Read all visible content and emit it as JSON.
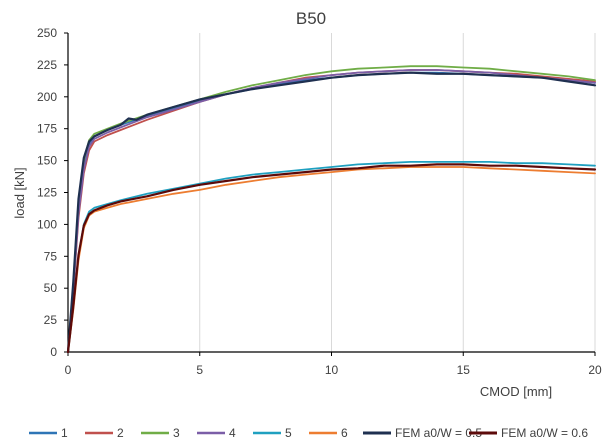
{
  "chart_data": {
    "type": "line",
    "title": "B50",
    "xlabel": "CMOD [mm]",
    "ylabel": "load [kN]",
    "xlim": [
      0,
      20
    ],
    "ylim": [
      0,
      250
    ],
    "xticks": [
      0,
      5,
      10,
      15,
      20
    ],
    "yticks": [
      0,
      25,
      50,
      75,
      100,
      125,
      150,
      175,
      200,
      225,
      250
    ],
    "grid": "vertical",
    "legend_position": "bottom",
    "series": [
      {
        "name": "1",
        "color": "#2e75b6",
        "group": "upper",
        "x": [
          0,
          0.2,
          0.4,
          0.6,
          0.8,
          1.0,
          1.5,
          2,
          3,
          4,
          5,
          6,
          7,
          8,
          9,
          10,
          11,
          12,
          13,
          14,
          15,
          16,
          17,
          18,
          19,
          20
        ],
        "y": [
          0,
          50,
          110,
          145,
          163,
          169,
          174,
          178,
          185,
          191,
          197,
          202,
          206,
          210,
          213,
          215,
          217,
          218,
          219,
          219,
          218,
          217,
          216,
          215,
          213,
          211
        ]
      },
      {
        "name": "2",
        "color": "#c0504d",
        "group": "upper",
        "x": [
          0,
          0.2,
          0.4,
          0.6,
          0.8,
          1.0,
          1.5,
          2,
          3,
          4,
          5,
          6,
          7,
          8,
          9,
          10,
          11,
          12,
          13,
          14,
          15,
          16,
          17,
          18,
          19,
          20
        ],
        "y": [
          0,
          48,
          105,
          140,
          158,
          165,
          170,
          174,
          182,
          189,
          196,
          202,
          207,
          211,
          215,
          217,
          219,
          220,
          221,
          221,
          220,
          219,
          218,
          216,
          214,
          212
        ]
      },
      {
        "name": "3",
        "color": "#70ad47",
        "group": "upper",
        "x": [
          0,
          0.2,
          0.4,
          0.6,
          0.8,
          1.0,
          1.5,
          2,
          3,
          4,
          5,
          6,
          7,
          8,
          9,
          10,
          11,
          12,
          13,
          14,
          15,
          16,
          17,
          18,
          19,
          20
        ],
        "y": [
          0,
          52,
          115,
          150,
          166,
          171,
          175,
          179,
          186,
          192,
          198,
          204,
          209,
          213,
          217,
          220,
          222,
          223,
          224,
          224,
          223,
          222,
          220,
          218,
          216,
          213
        ]
      },
      {
        "name": "4",
        "color": "#7b5ea7",
        "group": "upper",
        "x": [
          0,
          0.2,
          0.4,
          0.6,
          0.8,
          1.0,
          1.5,
          2,
          3,
          4,
          5,
          6,
          7,
          8,
          9,
          10,
          11,
          12,
          13,
          14,
          15,
          16,
          17,
          18,
          19,
          20
        ],
        "y": [
          0,
          49,
          108,
          143,
          161,
          167,
          172,
          176,
          184,
          190,
          196,
          202,
          207,
          211,
          214,
          217,
          219,
          220,
          221,
          221,
          220,
          219,
          217,
          215,
          213,
          211
        ]
      },
      {
        "name": "5",
        "color": "#1fa0c0",
        "group": "lower",
        "x": [
          0,
          0.2,
          0.4,
          0.6,
          0.8,
          1.0,
          1.5,
          2,
          3,
          4,
          5,
          6,
          7,
          8,
          9,
          10,
          11,
          12,
          13,
          14,
          15,
          16,
          17,
          18,
          19,
          20
        ],
        "y": [
          0,
          35,
          75,
          100,
          110,
          113,
          116,
          119,
          124,
          128,
          132,
          136,
          139,
          141,
          143,
          145,
          147,
          148,
          149,
          149,
          149,
          149,
          148,
          148,
          147,
          146
        ]
      },
      {
        "name": "6",
        "color": "#ed7d31",
        "group": "lower",
        "x": [
          0,
          0.2,
          0.4,
          0.6,
          0.8,
          1.0,
          1.5,
          2,
          3,
          4,
          5,
          6,
          7,
          8,
          9,
          10,
          11,
          12,
          13,
          14,
          15,
          16,
          17,
          18,
          19,
          20
        ],
        "y": [
          0,
          33,
          72,
          97,
          107,
          110,
          113,
          116,
          120,
          124,
          127,
          131,
          134,
          137,
          139,
          141,
          143,
          144,
          145,
          145,
          145,
          144,
          143,
          142,
          141,
          140
        ]
      },
      {
        "name": "FEM a0/W = 0.5",
        "color": "#1f3050",
        "group": "upper",
        "x": [
          0,
          0.2,
          0.4,
          0.6,
          0.8,
          1.0,
          1.5,
          2,
          2.3,
          2.6,
          3,
          4,
          5,
          6,
          7,
          8,
          9,
          10,
          11,
          12,
          13,
          14,
          15,
          16,
          17,
          18,
          19,
          20
        ],
        "y": [
          0,
          55,
          120,
          152,
          165,
          169,
          174,
          178,
          183,
          182,
          186,
          192,
          198,
          202,
          206,
          209,
          212,
          215,
          217,
          218,
          219,
          218,
          218,
          217,
          216,
          215,
          212,
          209
        ]
      },
      {
        "name": "FEM a0/W = 0.6",
        "color": "#5c0a0a",
        "group": "lower",
        "x": [
          0,
          0.2,
          0.4,
          0.6,
          0.8,
          1.0,
          1.5,
          2,
          3,
          4,
          5,
          6,
          7,
          8,
          9,
          10,
          11,
          12,
          13,
          14,
          15,
          16,
          17,
          18,
          19,
          20
        ],
        "y": [
          0,
          36,
          76,
          99,
          108,
          111,
          115,
          118,
          122,
          127,
          131,
          134,
          137,
          139,
          141,
          143,
          144,
          146,
          146,
          147,
          147,
          146,
          146,
          145,
          144,
          143
        ]
      }
    ]
  }
}
